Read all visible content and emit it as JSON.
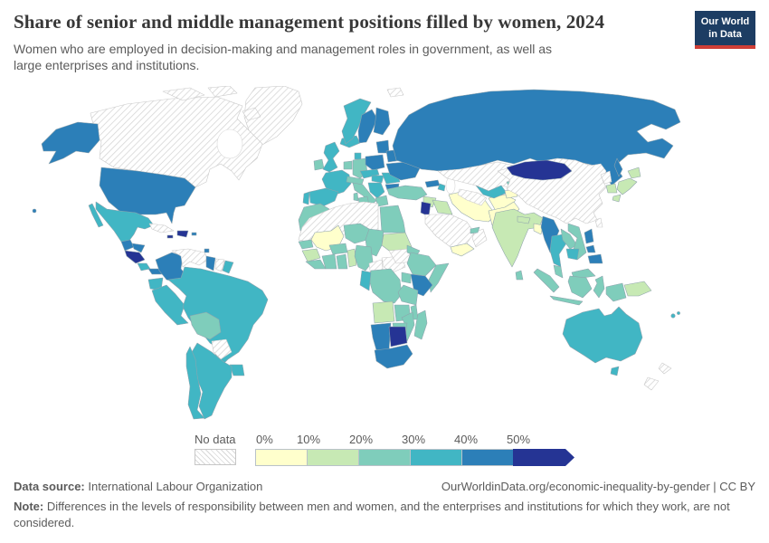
{
  "header": {
    "title": "Share of senior and middle management positions filled by women, 2024",
    "subtitle": "Women who are employed in decision-making and management roles in government, as well as large enterprises and institutions.",
    "logo": {
      "line1": "Our World",
      "line2": "in Data",
      "bg_color": "#1d3d63",
      "accent_color": "#cf3e36"
    }
  },
  "footer": {
    "source_label": "Data source:",
    "source_value": " International Labour Organization",
    "attribution": "OurWorldinData.org/economic-inequality-by-gender | CC BY",
    "note_label": "Note:",
    "note_text": " Differences in the levels of responsibility between men and women, and the enterprises and institutions for which they work, are not considered."
  },
  "chart_data": {
    "type": "choropleth_map",
    "title": "Share of senior and middle management positions filled by women, 2024",
    "unit": "% of senior and middle management positions filled by women",
    "no_data_style": "diagonal-hatch",
    "legend": {
      "no_data_label": "No data",
      "ticks": [
        "0%",
        "10%",
        "20%",
        "30%",
        "40%",
        "50%"
      ],
      "bins": [
        {
          "range": "0-10%",
          "color": "#ffffcc"
        },
        {
          "range": "10-20%",
          "color": "#c7e9b4"
        },
        {
          "range": "20-30%",
          "color": "#7fcdbb"
        },
        {
          "range": "30-40%",
          "color": "#41b6c4"
        },
        {
          "range": "40-50%",
          "color": "#2c7fb8"
        },
        {
          "range": "50%+",
          "color": "#253494",
          "arrow": true
        }
      ]
    },
    "countries": {
      "greenland": "no_data",
      "canada": "no_data",
      "svalbard": "no_data",
      "cuba": "no_data",
      "venezuela": "no_data",
      "suriname": "no_data",
      "paraguay": "no_data",
      "north_africa": "no_data",
      "cameroon": "no_data",
      "central_african_republic": "no_data",
      "south_sudan": "no_data",
      "saudi_arabia": "no_data",
      "oman": "no_data",
      "kazakhstan": "no_data",
      "turkmenistan": "no_data",
      "china": "no_data",
      "north_korea": "no_data",
      "taiwan": "no_data",
      "new_zealand": "no_data",
      "mali": "0-10%",
      "yemen": "0-10%",
      "iran": "0-10%",
      "afghanistan": "0-10%",
      "pakistan": "0-10%",
      "tajikistan": "0-10%",
      "bangladesh": "0-10%",
      "guinea": "10-20%",
      "togo_benin": "10-20%",
      "sudan": "10-20%",
      "angola": "10-20%",
      "india": "10-20%",
      "nepal": "10-20%",
      "syria": "10-20%",
      "iraq": "10-20%",
      "japan": "10-20%",
      "south_korea": "10-20%",
      "papua_new_guinea": "10-20%",
      "morocco": "20-30%",
      "tunisia": "20-30%",
      "egypt": "20-30%",
      "niger": "20-30%",
      "chad": "20-30%",
      "senegal": "20-30%",
      "sierra_leone_liberia": "20-30%",
      "ivory_coast": "20-30%",
      "ghana": "20-30%",
      "burkina_faso": "20-30%",
      "nigeria": "20-30%",
      "eritrea": "20-30%",
      "ethiopia": "20-30%",
      "somalia": "20-30%",
      "uganda": "20-30%",
      "tanzania": "20-30%",
      "drc": "20-30%",
      "zambia": "20-30%",
      "malawi": "20-30%",
      "mozambique": "20-30%",
      "zimbabwe": "20-30%",
      "madagascar": "20-30%",
      "bolivia": "20-30%",
      "germany": "20-30%",
      "benelux": "20-30%",
      "austria_switzerland": "20-30%",
      "italy": "20-30%",
      "greece": "20-30%",
      "ireland": "20-30%",
      "turkey": "20-30%",
      "laos": "20-30%",
      "vietnam": "20-30%",
      "malaysia": "20-30%",
      "indonesia": "20-30%",
      "sri_lanka": "20-30%",
      "kyrgyzstan": "20-30%",
      "united_arab_emirates": "20-30%",
      "mexico": "30-40%",
      "costa_rica": "30-40%",
      "ecuador": "30-40%",
      "peru": "30-40%",
      "brazil": "30-40%",
      "chile": "30-40%",
      "argentina": "30-40%",
      "uruguay": "30-40%",
      "french_guiana": "30-40%",
      "iceland": "30-40%",
      "norway": "30-40%",
      "denmark": "30-40%",
      "united_kingdom": "30-40%",
      "france": "30-40%",
      "spain": "30-40%",
      "portugal": "30-40%",
      "czechia_slovakia": "30-40%",
      "hungary": "30-40%",
      "balkans": "30-40%",
      "romania": "30-40%",
      "thailand": "30-40%",
      "cambodia": "30-40%",
      "uzbekistan": "30-40%",
      "australia": "30-40%",
      "fiji": "30-40%",
      "gabon_congo": "30-40%",
      "azerbaijan": "30-40%",
      "united_states": "40-50%",
      "guatemala": "40-50%",
      "honduras": "40-50%",
      "panama": "40-50%",
      "colombia": "40-50%",
      "guyana": "40-50%",
      "trinidad_and_tobago": "40-50%",
      "puerto_rico": "40-50%",
      "sweden": "40-50%",
      "finland": "40-50%",
      "poland": "40-50%",
      "baltics": "40-50%",
      "belarus": "40-50%",
      "ukraine": "40-50%",
      "bulgaria": "40-50%",
      "russia": "40-50%",
      "georgia": "40-50%",
      "myanmar": "40-50%",
      "philippines": "40-50%",
      "kenya": "40-50%",
      "namibia": "40-50%",
      "south_africa": "40-50%",
      "nicaragua_el_salvador": "50%+",
      "jamaica": "50%+",
      "dominican_republic": "50%+",
      "jordan": "50%+",
      "mongolia": "50%+",
      "botswana": "50%+"
    }
  }
}
